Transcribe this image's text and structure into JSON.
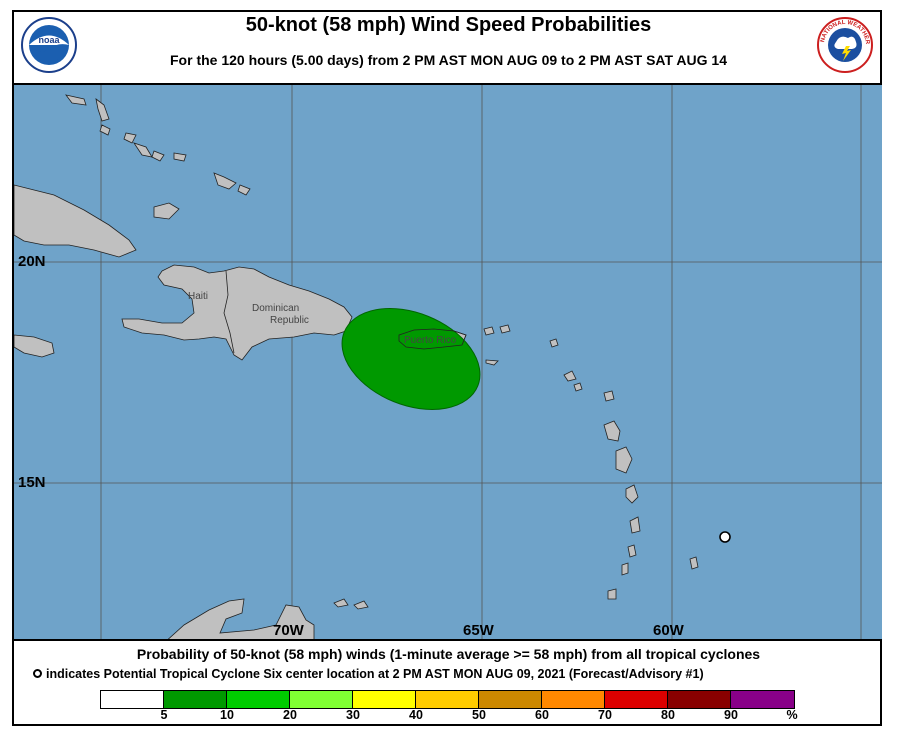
{
  "title": "50-knot (58 mph) Wind Speed Probabilities",
  "subtitle": "For the 120 hours (5.00 days) from 2 PM AST MON AUG 09 to 2 PM AST SAT AUG 14",
  "logos": {
    "left": "NOAA",
    "right": "NATIONAL WEATHER SERVICE"
  },
  "map": {
    "ocean_color": "#6fa3c9",
    "land_color": "#c0c0c0",
    "grid_color": "#555555",
    "lat_labels": [
      "20N",
      "15N"
    ],
    "lon_labels": [
      "70W",
      "65W",
      "60W"
    ],
    "country_labels": {
      "haiti": "Haiti",
      "dr1": "Dominican",
      "dr2": "Republic",
      "pr": "Puerto Rico"
    },
    "probability_area": {
      "category": "5-10",
      "color": "#009900"
    },
    "storm_marker": "Potential Tropical Cyclone Six center location"
  },
  "footer": {
    "line1": "Probability of 50-knot (58 mph) winds (1-minute average >= 58 mph) from all tropical cyclones",
    "line2": "indicates Potential Tropical Cyclone Six center location at 2 PM AST MON AUG 09, 2021 (Forecast/Advisory #1)"
  },
  "legend": {
    "colors": [
      "#ffffff",
      "#009900",
      "#00cc00",
      "#80ff33",
      "#ffff00",
      "#ffcc00",
      "#cc8800",
      "#ff8800",
      "#dd0000",
      "#880000",
      "#880088"
    ],
    "labels": [
      "5",
      "10",
      "20",
      "30",
      "40",
      "50",
      "60",
      "70",
      "80",
      "90",
      "%"
    ]
  }
}
